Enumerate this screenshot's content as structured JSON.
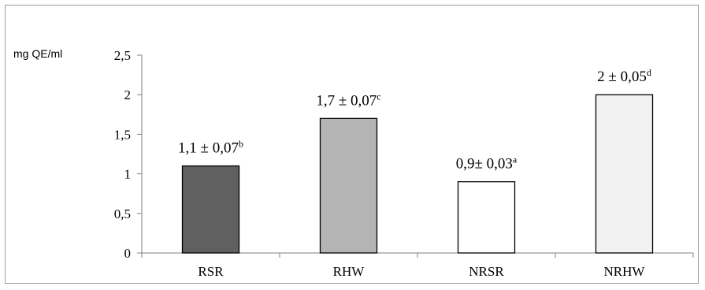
{
  "chart_data": {
    "type": "bar",
    "ylabel": "mg QE/ml",
    "categories": [
      "RSR",
      "RHW",
      "NRSR",
      "NRHW"
    ],
    "values": [
      1.1,
      1.7,
      0.9,
      2.0
    ],
    "value_labels": [
      {
        "main": "1,1 ± 0,07",
        "sup": "b"
      },
      {
        "main": "1,7 ± 0,07",
        "sup": "c"
      },
      {
        "main": "0,9± 0,03",
        "sup": "a"
      },
      {
        "main": "2 ± 0,05",
        "sup": "d"
      }
    ],
    "bar_colors": [
      "#606060",
      "#b4b4b4",
      "#ffffff",
      "#f2f2f2"
    ],
    "ylim": [
      0,
      2.5
    ],
    "yticks": [
      0,
      0.5,
      1,
      1.5,
      2,
      2.5
    ],
    "ytick_labels": [
      "0",
      "0,5",
      "1",
      "1,5",
      "2",
      "2,5"
    ],
    "grid": false,
    "legend": "none"
  }
}
